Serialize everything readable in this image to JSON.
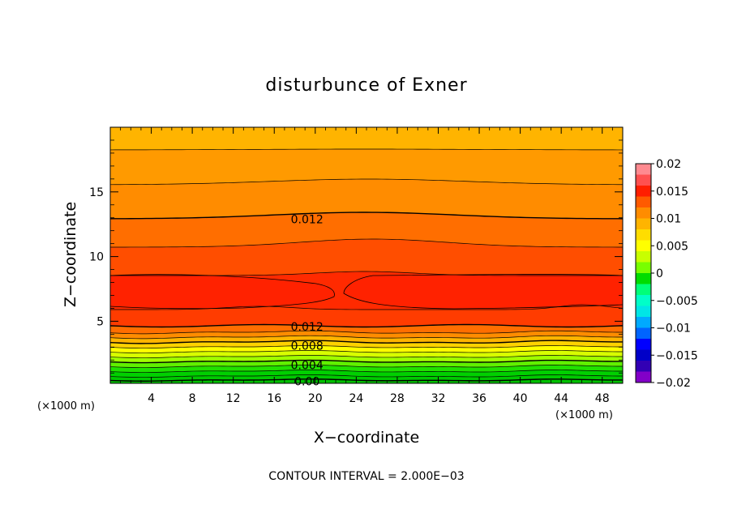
{
  "chart_data": {
    "type": "heatmap",
    "title": "disturbunce of Exner",
    "xlabel": "X−coordinate",
    "ylabel": "Z−coordinate",
    "x_unit": "(×1000 m)",
    "z_unit": "(×1000 m)",
    "xlim": [
      0,
      50
    ],
    "ylim": [
      0.2,
      20
    ],
    "x_ticks": [
      4,
      8,
      12,
      16,
      20,
      24,
      28,
      32,
      36,
      40,
      44,
      48
    ],
    "y_ticks": [
      5,
      10,
      15
    ],
    "x_tick_labels": [
      "4",
      "8",
      "12",
      "16",
      "20",
      "24",
      "28",
      "32",
      "36",
      "40",
      "44",
      "48"
    ],
    "y_tick_labels": [
      "5",
      "10",
      "15"
    ],
    "contour_interval_text": "CONTOUR INTERVAL = 2.000E−03",
    "colorbar": {
      "min": -0.02,
      "max": 0.02,
      "ticks": [
        0.02,
        0.015,
        0.01,
        0.005,
        0,
        -0.005,
        -0.01,
        -0.015,
        -0.02
      ],
      "tick_labels": [
        "0.02",
        "0.015",
        "0.01",
        "0.005",
        "0",
        "−0.005",
        "−0.01",
        "−0.015",
        "−0.02"
      ],
      "colors_top_to_bottom": [
        "#ff8a90",
        "#ff5050",
        "#ff1e00",
        "#ff5a00",
        "#ff8c00",
        "#ffb400",
        "#ffdd00",
        "#ffff00",
        "#c8ff00",
        "#78ff00",
        "#00dc00",
        "#00ff78",
        "#00ffc8",
        "#00e6e6",
        "#00aaff",
        "#0064ff",
        "#0000ff",
        "#0000c8",
        "#3200b4",
        "#8200c8"
      ]
    },
    "contour_labels": [
      {
        "text": "0.012",
        "x": 19.2,
        "z": 12.9
      },
      {
        "text": "0.012",
        "x": 19.2,
        "z": 4.6
      },
      {
        "text": "0.008",
        "x": 19.2,
        "z": 3.1
      },
      {
        "text": "0.004",
        "x": 19.2,
        "z": 1.6
      },
      {
        "text": "0.00",
        "x": 19.2,
        "z": 0.35
      }
    ]
  }
}
